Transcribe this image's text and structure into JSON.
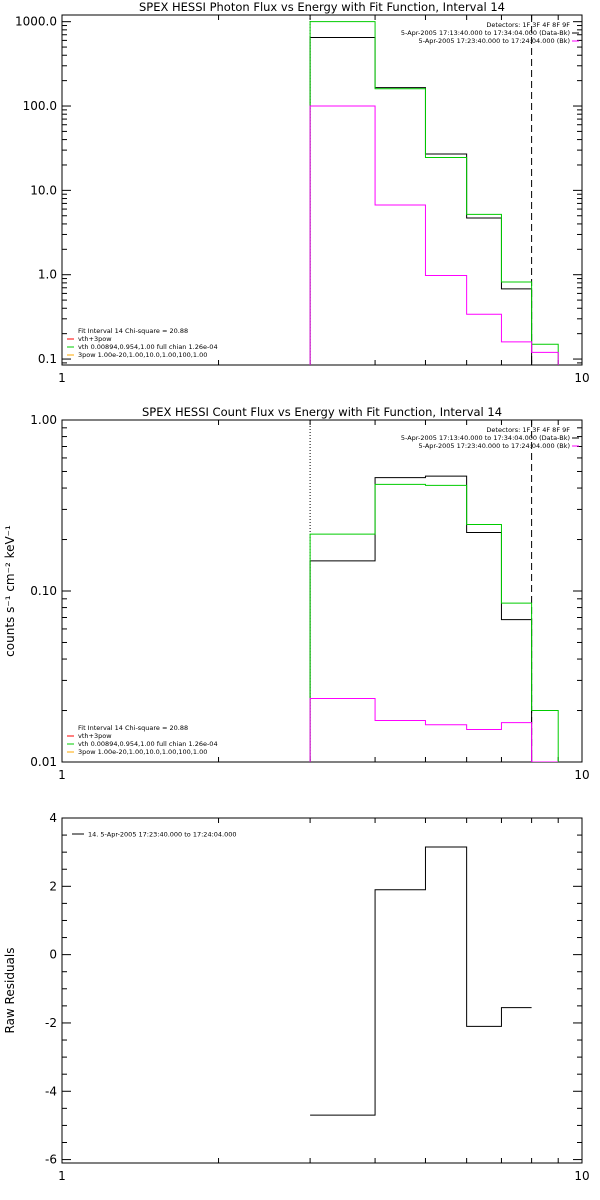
{
  "colors": {
    "observed": "#000000",
    "model": "#00cc00",
    "thermal": "#ff00ff",
    "gaussian": "#ff0000",
    "sum": "#00cc00",
    "pileup": "#ffaa00"
  },
  "chart_data": [
    {
      "type": "line",
      "step": true,
      "title": "SPEX HESSI Photon Flux vs Energy with Fit Function, Interval 14",
      "xlabel": "",
      "ylabel": "",
      "xscale": "log",
      "yscale": "log",
      "xlim": [
        1,
        10
      ],
      "ylim": [
        0.085,
        1200
      ],
      "xticks": [
        {
          "v": 1,
          "label": "1"
        },
        {
          "v": 10,
          "label": "10"
        }
      ],
      "yticks": [
        {
          "v": 0.1,
          "label": "0.1"
        },
        {
          "v": 1,
          "label": "1.0"
        },
        {
          "v": 10,
          "label": "10.0"
        },
        {
          "v": 100,
          "label": "100.0"
        },
        {
          "v": 1000,
          "label": "1000.0"
        }
      ],
      "edges": [
        3,
        4,
        5,
        6,
        7,
        8,
        9
      ],
      "series": [
        {
          "key": "observed",
          "color": "#000000",
          "values": [
            650,
            165,
            27,
            4.7,
            0.68,
            null
          ]
        },
        {
          "key": "model",
          "color": "#00cc00",
          "values": [
            1000,
            160,
            24.5,
            5.2,
            0.82,
            0.15
          ]
        },
        {
          "key": "thermal",
          "color": "#ff00ff",
          "values": [
            100,
            6.7,
            0.98,
            0.34,
            0.16,
            0.12
          ]
        }
      ],
      "vlines": [
        {
          "x": 3,
          "style": "dotted"
        },
        {
          "x": 8,
          "style": "dashed"
        }
      ],
      "header_lines": [
        "Detectors: 1F 3F 4F 8F 9F",
        "5-Apr-2005 17:13:40.000 to 17:34:04.000 (Data-Bk)",
        "5-Apr-2005 17:23:40.000 to 17:24:04.000 (Bk)"
      ],
      "fit_lines": [
        {
          "text": "Fit Interval 14    Chi-square = 20.88",
          "color": "#000000"
        },
        {
          "text": "vth+3pow",
          "color": "#ff0000"
        },
        {
          "text": "vth 0.00894,0.954,1.00   full chian 1.26e-04",
          "color": "#00cc00"
        },
        {
          "text": "3pow 1.00e-20,1.00,10.0,1.00,100,1.00",
          "color": "#ffaa00"
        }
      ]
    },
    {
      "type": "line",
      "step": true,
      "title": "SPEX HESSI Count Flux vs Energy with Fit Function, Interval 14",
      "xlabel": "",
      "ylabel": "counts s⁻¹ cm⁻² keV⁻¹",
      "xscale": "log",
      "yscale": "log",
      "xlim": [
        1,
        10
      ],
      "ylim": [
        0.01,
        1.0
      ],
      "xticks": [
        {
          "v": 1,
          "label": "1"
        },
        {
          "v": 10,
          "label": "10"
        }
      ],
      "yticks": [
        {
          "v": 0.01,
          "label": "0.01"
        },
        {
          "v": 0.1,
          "label": "0.10"
        },
        {
          "v": 1,
          "label": "1.00"
        }
      ],
      "edges": [
        3,
        4,
        5,
        6,
        7,
        8,
        9
      ],
      "series": [
        {
          "key": "observed",
          "color": "#000000",
          "values": [
            0.15,
            0.46,
            0.47,
            0.22,
            0.068,
            null
          ]
        },
        {
          "key": "model",
          "color": "#00cc00",
          "values": [
            0.215,
            0.42,
            0.415,
            0.245,
            0.085,
            0.02
          ]
        },
        {
          "key": "thermal",
          "color": "#ff00ff",
          "values": [
            0.0235,
            0.0175,
            0.0165,
            0.0155,
            0.017,
            0.01
          ]
        }
      ],
      "vlines": [
        {
          "x": 3,
          "style": "dotted"
        },
        {
          "x": 8,
          "style": "dashed"
        }
      ],
      "header_lines": [
        "Detectors: 1F 3F 4F 8F 9F",
        "5-Apr-2005 17:13:40.000 to 17:34:04.000 (Data-Bk)",
        "5-Apr-2005 17:23:40.000 to 17:24:04.000 (Bk)"
      ],
      "fit_lines": [
        {
          "text": "Fit Interval 14    Chi-square = 20.88",
          "color": "#000000"
        },
        {
          "text": "vth+3pow",
          "color": "#ff0000"
        },
        {
          "text": "vth 0.00894,0.954,1.00   full chian 1.26e-04",
          "color": "#00cc00"
        },
        {
          "text": "3pow 1.00e-20,1.00,10.0,1.00,100,1.00",
          "color": "#ffaa00"
        }
      ]
    },
    {
      "type": "line",
      "step": true,
      "title": "",
      "xlabel": "",
      "ylabel": "Raw Residuals",
      "xscale": "log",
      "yscale": "linear",
      "xlim": [
        1,
        10
      ],
      "ylim": [
        -6.1,
        4
      ],
      "xticks": [
        {
          "v": 1,
          "label": "1"
        },
        {
          "v": 10,
          "label": "10"
        }
      ],
      "yticks": [
        {
          "v": -6,
          "label": "-6"
        },
        {
          "v": -4,
          "label": "-4"
        },
        {
          "v": -2,
          "label": "-2"
        },
        {
          "v": 0,
          "label": "0"
        },
        {
          "v": 2,
          "label": "2"
        },
        {
          "v": 4,
          "label": "4"
        }
      ],
      "edges": [
        3,
        4,
        5,
        6,
        7,
        8
      ],
      "series": [
        {
          "key": "residuals",
          "color": "#000000",
          "values": [
            -4.7,
            1.9,
            3.15,
            -2.1,
            -1.55
          ]
        }
      ],
      "vlines": [],
      "legend": {
        "text": "14.  5-Apr-2005 17:23:40.000 to 17:24:04.000",
        "color": "#000000",
        "position": "top-left"
      }
    }
  ]
}
